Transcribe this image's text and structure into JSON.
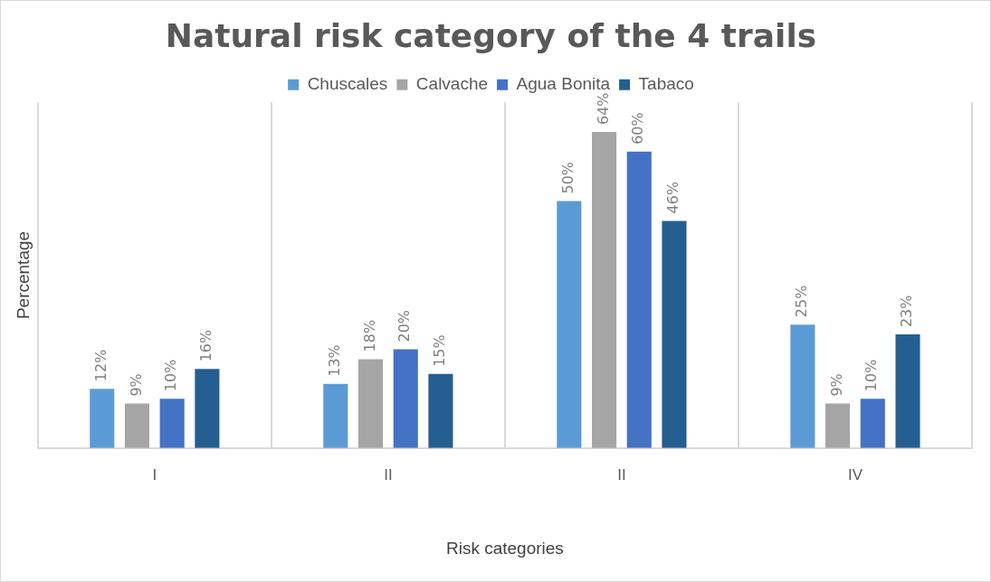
{
  "chart_data": {
    "type": "bar",
    "title": "Natural risk category of the 4 trails",
    "xlabel": "Risk categories",
    "ylabel": "Percentage",
    "categories": [
      "I",
      "II",
      "II",
      "IV"
    ],
    "series": [
      {
        "name": "Chuscales",
        "color": "#5b9bd5",
        "values": [
          12,
          13,
          50,
          25
        ],
        "value_labels": [
          "12%",
          "13%",
          "50%",
          "25%"
        ]
      },
      {
        "name": "Calvache",
        "color": "#a5a5a5",
        "values": [
          9,
          18,
          64,
          9
        ],
        "value_labels": [
          "9%",
          "18%",
          "64%",
          "9%"
        ]
      },
      {
        "name": "Agua Bonita",
        "color": "#4472c4",
        "values": [
          10,
          20,
          60,
          10
        ],
        "value_labels": [
          "10%",
          "20%",
          "60%",
          "10%"
        ]
      },
      {
        "name": "Tabaco",
        "color": "#255e91",
        "values": [
          16,
          15,
          46,
          23
        ],
        "value_labels": [
          "16%",
          "15%",
          "46%",
          "23%"
        ]
      }
    ],
    "grid": "x",
    "legend": "top",
    "tick_labels": "x"
  }
}
